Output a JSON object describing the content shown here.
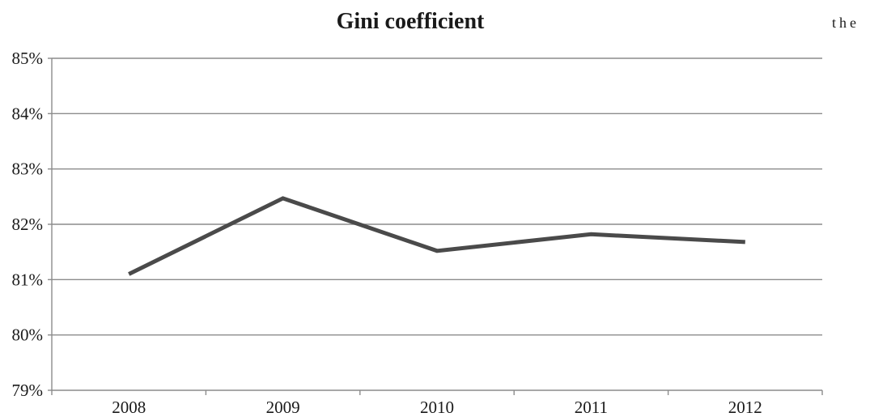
{
  "chart_data": {
    "type": "line",
    "title": "Gini coefficient",
    "xlabel": "",
    "ylabel": "",
    "categories": [
      "2008",
      "2009",
      "2010",
      "2011",
      "2012"
    ],
    "series": [
      {
        "values": [
          81.1,
          82.47,
          81.52,
          81.82,
          81.68
        ],
        "color": "#4a4a4a"
      }
    ],
    "ylim": [
      79,
      85
    ],
    "y_ticks": [
      {
        "value": 85,
        "label": "85%"
      },
      {
        "value": 84,
        "label": "84%"
      },
      {
        "value": 83,
        "label": "83%"
      },
      {
        "value": 82,
        "label": "82%"
      },
      {
        "value": 81,
        "label": "81%"
      },
      {
        "value": 80,
        "label": "80%"
      },
      {
        "value": 79,
        "label": "79%"
      }
    ],
    "grid": true,
    "legend": "none"
  },
  "margin_text": "the"
}
